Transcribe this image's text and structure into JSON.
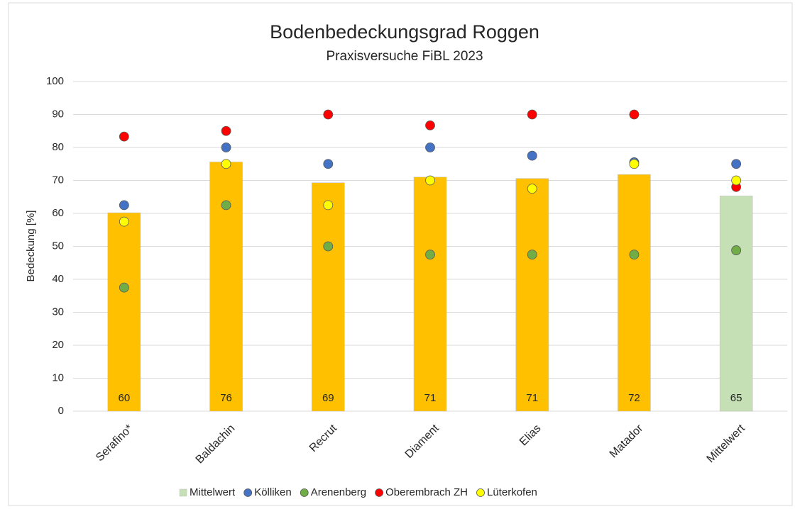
{
  "chart_data": {
    "type": "bar",
    "title": "Bodenbedeckungsgrad Roggen",
    "subtitle": "Praxisversuche FiBL 2023",
    "y_label": "Bedeckung [%]",
    "categories": [
      "Serafino*",
      "Baldachin",
      "Recrut",
      "Diament",
      "Elias",
      "Matador",
      "Mittelwert"
    ],
    "values": [
      60.2,
      75.6,
      69.3,
      71.0,
      70.6,
      71.8,
      65.3
    ],
    "value_labels": [
      "60",
      "76",
      "69",
      "71",
      "71",
      "72",
      "65"
    ],
    "colors": [
      "#ffc000",
      "#ffc000",
      "#ffc000",
      "#ffc000",
      "#ffc000",
      "#ffc000",
      "#c5e0b4"
    ],
    "bar_legend": {
      "name": "Mittelwert",
      "color": "#c5e0b4"
    },
    "series": [
      {
        "name": "Kölliken",
        "color": "#4472c4",
        "values": [
          62.5,
          80,
          75,
          80,
          77.5,
          75.5,
          75
        ]
      },
      {
        "name": "Arenenberg",
        "color": "#70ad47",
        "values": [
          37.5,
          62.5,
          50,
          47.5,
          47.5,
          47.5,
          48.8
        ]
      },
      {
        "name": "Oberembrach ZH",
        "color": "#ff0000",
        "values": [
          83.3,
          85,
          90,
          86.7,
          90,
          90,
          68
        ]
      },
      {
        "name": "Lüterkofen",
        "color": "#ffff00",
        "values": [
          57.5,
          75,
          62.5,
          70,
          67.5,
          75,
          70
        ]
      }
    ],
    "ylim": [
      0,
      100
    ],
    "yticks": [
      0,
      10,
      20,
      30,
      40,
      50,
      60,
      70,
      80,
      90,
      100
    ],
    "grid": true
  }
}
